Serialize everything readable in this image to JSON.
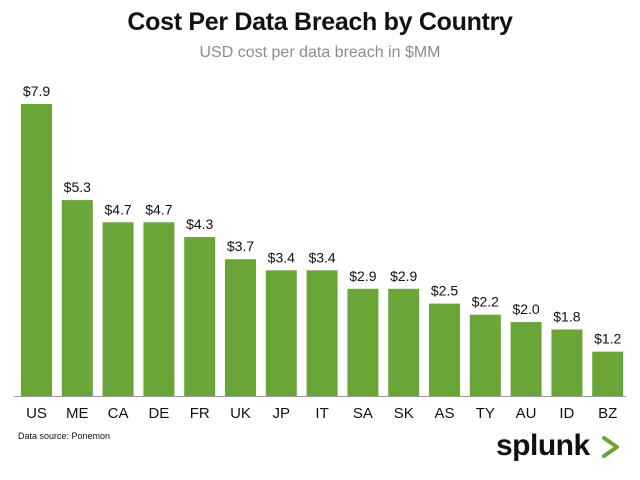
{
  "chart_data": {
    "type": "bar",
    "title": "Cost Per Data Breach by Country",
    "subtitle": "USD cost per data breach in $MM",
    "categories": [
      "US",
      "ME",
      "CA",
      "DE",
      "FR",
      "UK",
      "JP",
      "IT",
      "SA",
      "SK",
      "AS",
      "TY",
      "AU",
      "ID",
      "BZ"
    ],
    "values": [
      7.9,
      5.3,
      4.7,
      4.7,
      4.3,
      3.7,
      3.4,
      3.4,
      2.9,
      2.9,
      2.5,
      2.2,
      2.0,
      1.8,
      1.2
    ],
    "data_labels": [
      "$7.9",
      "$5.3",
      "$4.7",
      "$4.7",
      "$4.3",
      "$3.7",
      "$3.4",
      "$3.4",
      "$2.9",
      "$2.9",
      "$2.5",
      "$2.2",
      "$2.0",
      "$1.8",
      "$1.2"
    ],
    "xlabel": "",
    "ylabel": "",
    "ylim": [
      0,
      7.9
    ],
    "grid": false,
    "bar_color": "#6aa637"
  },
  "footer": {
    "source": "Data source: Ponemon",
    "brand": "splunk",
    "brand_chevron_color": "#6aa637"
  }
}
